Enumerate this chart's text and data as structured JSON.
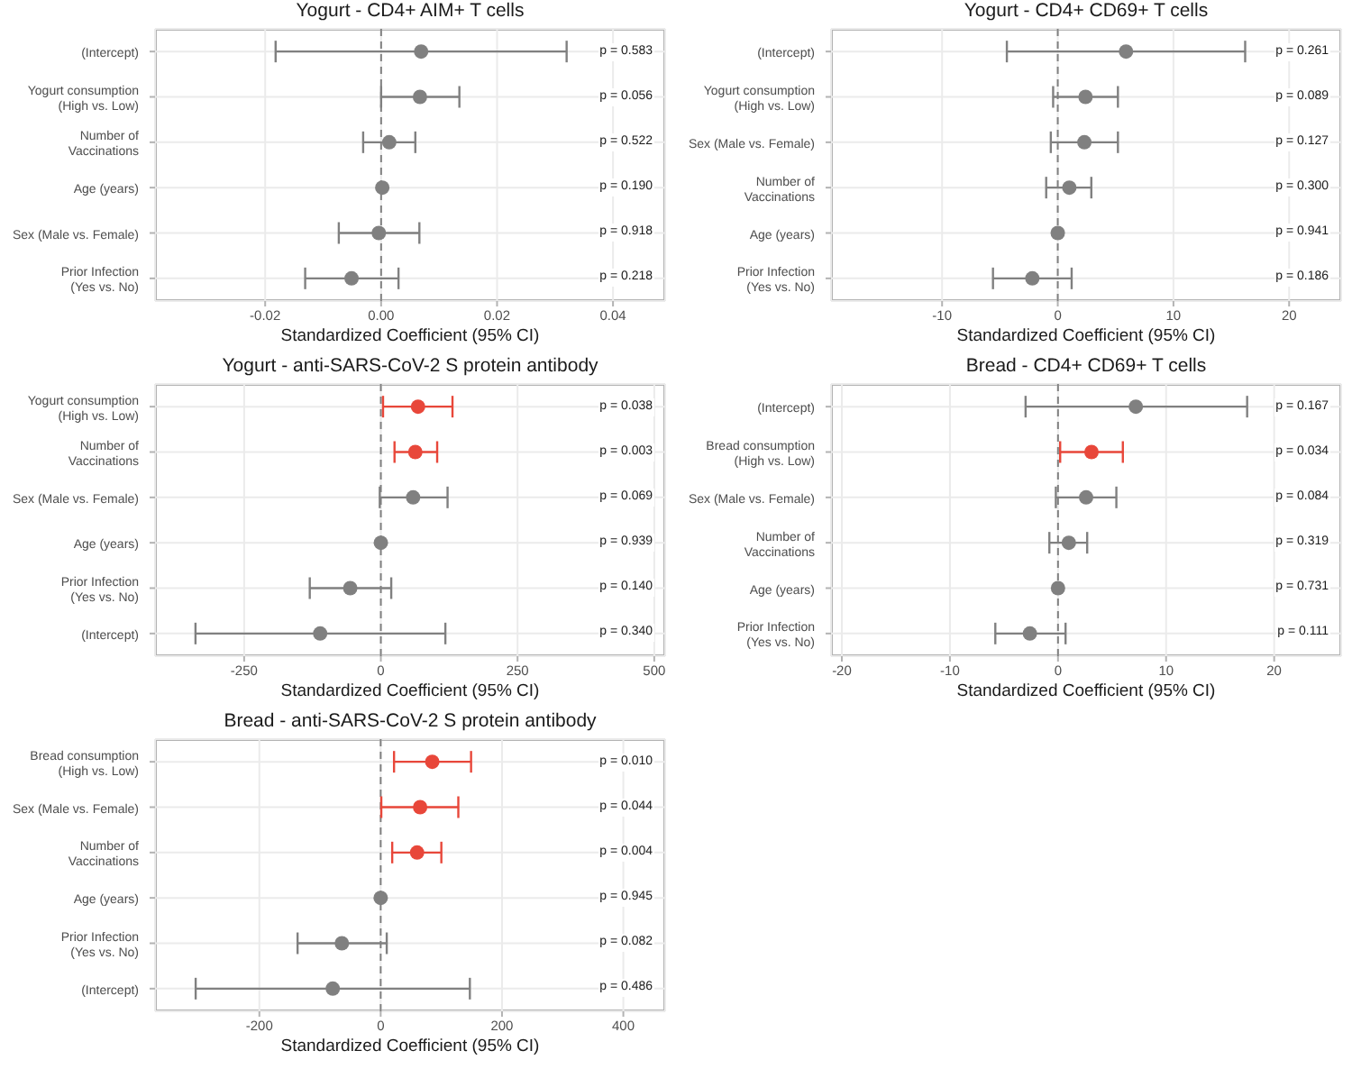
{
  "chart_data": [
    {
      "type": "scatter",
      "orientation": "horizontal",
      "title": "Yogurt - CD4+ AIM+ T cells",
      "xlabel": "Standardized Coefficient (95% CI)",
      "marker": "circle",
      "grid": true,
      "categories": [
        "(Intercept)",
        "Yogurt consumption\n(High vs. Low)",
        "Number of\nVaccinations",
        "Age (years)",
        "Sex (Male vs. Female)",
        "Prior Infection\n(Yes vs. No)"
      ],
      "values": [
        0.0069,
        0.0067,
        0.0014,
        0.0002,
        -0.0004,
        -0.0051
      ],
      "errors": [
        [
          -0.0182,
          0.032
        ],
        [
          0.0,
          0.0135
        ],
        [
          -0.0031,
          0.0059
        ],
        null,
        [
          -0.0073,
          0.0066
        ],
        [
          -0.0131,
          0.003
        ]
      ],
      "colors": [
        "#808080",
        "#808080",
        "#808080",
        "#808080",
        "#808080",
        "#808080"
      ],
      "xlim": [
        -0.039,
        0.049
      ],
      "xticks": [
        -0.02,
        {
          "value": 0,
          "label": "0.00"
        },
        0.02,
        0.04
      ],
      "ref_lines": [
        {
          "axis": "x",
          "value": 0,
          "line_style": "dashed",
          "color": "#808080"
        }
      ],
      "annotations": [
        "p = 0.583",
        "p = 0.056",
        "p = 0.522",
        "p = 0.190",
        "p = 0.918",
        "p = 0.218"
      ]
    },
    {
      "type": "scatter",
      "orientation": "horizontal",
      "title": "Yogurt - CD4+ CD69+ T cells",
      "xlabel": "Standardized Coefficient (95% CI)",
      "marker": "circle",
      "grid": true,
      "categories": [
        "(Intercept)",
        "Yogurt consumption\n(High vs. Low)",
        "Sex (Male vs. Female)",
        "Number of\nVaccinations",
        "Age (years)",
        "Prior Infection\n(Yes vs. No)"
      ],
      "values": [
        5.9,
        2.4,
        2.3,
        1.0,
        0.0,
        -2.2
      ],
      "errors": [
        [
          -4.4,
          16.2
        ],
        [
          -0.4,
          5.2
        ],
        [
          -0.6,
          5.2
        ],
        [
          -1.0,
          2.9
        ],
        null,
        [
          -5.6,
          1.2
        ]
      ],
      "colors": [
        "#808080",
        "#808080",
        "#808080",
        "#808080",
        "#808080",
        "#808080"
      ],
      "xlim": [
        -19.6,
        24.5
      ],
      "xticks": [
        -10,
        0,
        10,
        20
      ],
      "ref_lines": [
        {
          "axis": "x",
          "value": 0,
          "line_style": "dashed",
          "color": "#808080"
        }
      ],
      "annotations": [
        "p = 0.261",
        "p = 0.089",
        "p = 0.127",
        "p = 0.300",
        "p = 0.941",
        "p = 0.186"
      ]
    },
    {
      "type": "scatter",
      "orientation": "horizontal",
      "title": "Yogurt - anti-SARS-CoV-2 S protein antibody",
      "xlabel": "Standardized Coefficient (95% CI)",
      "marker": "circle",
      "grid": true,
      "categories": [
        "Yogurt consumption\n(High vs. Low)",
        "Number of\nVaccinations",
        "Sex (Male vs. Female)",
        "Age (years)",
        "Prior Infection\n(Yes vs. No)",
        "(Intercept)"
      ],
      "values": [
        68,
        63,
        59,
        0,
        -56,
        -111
      ],
      "errors": [
        [
          4,
          131
        ],
        [
          25,
          103
        ],
        [
          -2,
          122
        ],
        null,
        [
          -130,
          19
        ],
        [
          -339,
          118
        ]
      ],
      "colors": [
        "#e8473a",
        "#e8473a",
        "#808080",
        "#808080",
        "#808080",
        "#808080"
      ],
      "xlim": [
        -413,
        520
      ],
      "xticks": [
        -250,
        0,
        250,
        500
      ],
      "ref_lines": [
        {
          "axis": "x",
          "value": 0,
          "line_style": "dashed",
          "color": "#808080"
        }
      ],
      "annotations": [
        "p = 0.038",
        "p = 0.003",
        "p = 0.069",
        "p = 0.939",
        "p = 0.140",
        "p = 0.340"
      ]
    },
    {
      "type": "scatter",
      "orientation": "horizontal",
      "title": "Bread - CD4+ CD69+ T cells",
      "xlabel": "Standardized Coefficient (95% CI)",
      "marker": "circle",
      "grid": true,
      "categories": [
        "(Intercept)",
        "Bread consumption\n(High vs. Low)",
        "Sex (Male vs. Female)",
        "Number of\nVaccinations",
        "Age (years)",
        "Prior Infection\n(Yes vs. No)"
      ],
      "values": [
        7.2,
        3.1,
        2.6,
        1.0,
        0.0,
        -2.6
      ],
      "errors": [
        [
          -3.0,
          17.5
        ],
        [
          0.2,
          6.0
        ],
        [
          -0.2,
          5.4
        ],
        [
          -0.8,
          2.7
        ],
        null,
        [
          -5.8,
          0.7
        ]
      ],
      "colors": [
        "#808080",
        "#e8473a",
        "#808080",
        "#808080",
        "#808080",
        "#808080"
      ],
      "xlim": [
        -21,
        26.2
      ],
      "xticks": [
        -20,
        -10,
        0,
        10,
        20
      ],
      "ref_lines": [
        {
          "axis": "x",
          "value": 0,
          "line_style": "dashed",
          "color": "#808080"
        }
      ],
      "annotations": [
        "p = 0.167",
        "p = 0.034",
        "p = 0.084",
        "p = 0.319",
        "p = 0.731",
        "p = 0.111"
      ]
    },
    {
      "type": "scatter",
      "orientation": "horizontal",
      "title": "Bread - anti-SARS-CoV-2 S protein antibody",
      "xlabel": "Standardized Coefficient (95% CI)",
      "marker": "circle",
      "grid": true,
      "categories": [
        "Bread consumption\n(High vs. Low)",
        "Sex (Male vs. Female)",
        "Number of\nVaccinations",
        "Age (years)",
        "Prior Infection\n(Yes vs. No)",
        "(Intercept)"
      ],
      "values": [
        85,
        65,
        60,
        0,
        -64,
        -79
      ],
      "errors": [
        [
          22,
          149
        ],
        [
          1,
          128
        ],
        [
          19,
          100
        ],
        null,
        [
          -137,
          10
        ],
        [
          -305,
          147
        ]
      ],
      "colors": [
        "#e8473a",
        "#e8473a",
        "#e8473a",
        "#808080",
        "#808080",
        "#808080"
      ],
      "xlim": [
        -372,
        469
      ],
      "xticks": [
        -200,
        0,
        200,
        400
      ],
      "ref_lines": [
        {
          "axis": "x",
          "value": 0,
          "line_style": "dashed",
          "color": "#808080"
        }
      ],
      "annotations": [
        "p = 0.010",
        "p = 0.044",
        "p = 0.004",
        "p = 0.945",
        "p = 0.082",
        "p = 0.486"
      ]
    }
  ]
}
